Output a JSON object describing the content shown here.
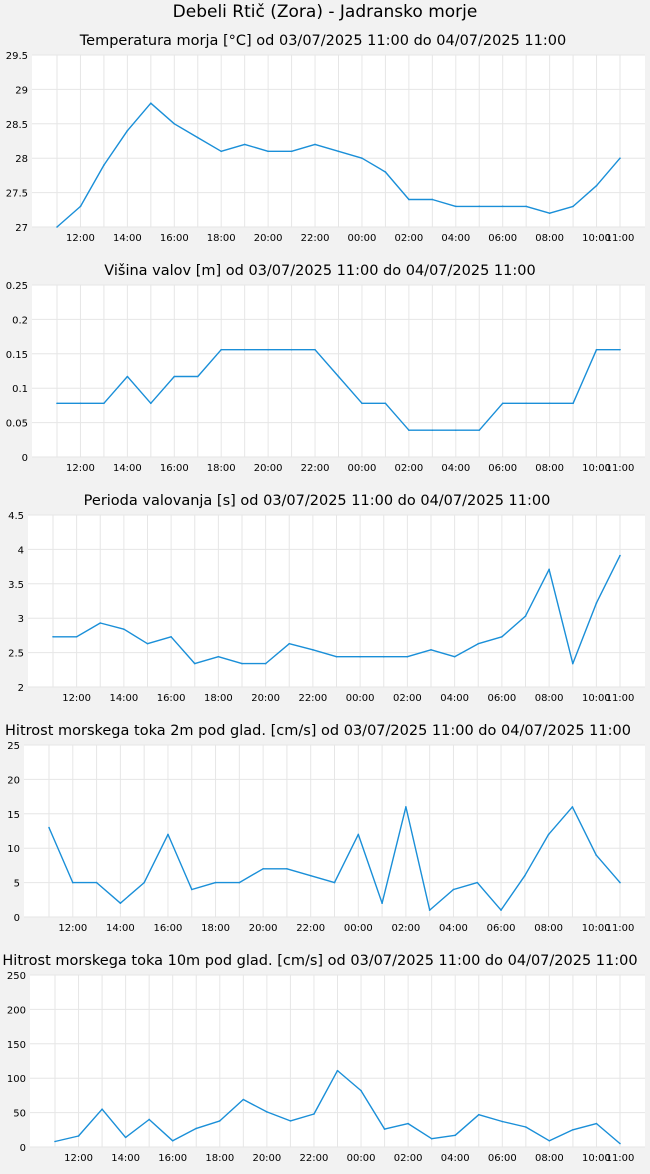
{
  "title": "Debeli Rtič (Zora) - Jadransko morje",
  "colors": {
    "series": "#1a8fd8",
    "background": "#f2f2f2",
    "plot": "#ffffff",
    "grid": "#e6e6e6"
  },
  "chart_data": [
    {
      "type": "line",
      "title": "Temperatura morja [°C] od 03/07/2025 11:00 do 04/07/2025 11:00",
      "ylim": [
        27,
        29.5
      ],
      "ytick_labels": [
        "27",
        "27.5",
        "28",
        "28.5",
        "29",
        "29.5"
      ],
      "xtick_labels": [
        "12:00",
        "14:00",
        "16:00",
        "18:00",
        "20:00",
        "22:00",
        "00:00",
        "02:00",
        "04:00",
        "06:00",
        "08:00",
        "10:00",
        "11:00"
      ],
      "x": [
        "11:00",
        "12:00",
        "13:00",
        "14:00",
        "15:00",
        "16:00",
        "17:00",
        "18:00",
        "19:00",
        "20:00",
        "21:00",
        "22:00",
        "23:00",
        "00:00",
        "01:00",
        "02:00",
        "03:00",
        "04:00",
        "05:00",
        "06:00",
        "07:00",
        "08:00",
        "09:00",
        "10:00",
        "11:00"
      ],
      "values": [
        27.0,
        27.3,
        27.9,
        28.4,
        28.8,
        28.5,
        28.3,
        28.1,
        28.2,
        28.1,
        28.1,
        28.2,
        28.1,
        28.0,
        27.8,
        27.4,
        27.4,
        27.3,
        27.3,
        27.3,
        27.3,
        27.2,
        27.3,
        27.6,
        28.0
      ],
      "grid": true
    },
    {
      "type": "line",
      "title": "Višina valov [m] od 03/07/2025 11:00 do 04/07/2025 11:00",
      "ylim": [
        0,
        0.25
      ],
      "ytick_labels": [
        "0",
        "0.05",
        "0.1",
        "0.15",
        "0.2",
        "0.25"
      ],
      "xtick_labels": [
        "12:00",
        "14:00",
        "16:00",
        "18:00",
        "20:00",
        "22:00",
        "00:00",
        "02:00",
        "04:00",
        "06:00",
        "08:00",
        "10:00",
        "11:00"
      ],
      "x": [
        "11:00",
        "12:00",
        "13:00",
        "14:00",
        "15:00",
        "16:00",
        "17:00",
        "18:00",
        "19:00",
        "20:00",
        "21:00",
        "22:00",
        "23:00",
        "00:00",
        "01:00",
        "02:00",
        "03:00",
        "04:00",
        "05:00",
        "06:00",
        "07:00",
        "08:00",
        "09:00",
        "10:00",
        "11:00"
      ],
      "values": [
        0.078,
        0.078,
        0.078,
        0.117,
        0.078,
        0.117,
        0.117,
        0.156,
        0.156,
        0.156,
        0.156,
        0.156,
        0.117,
        0.078,
        0.078,
        0.039,
        0.039,
        0.039,
        0.039,
        0.078,
        0.078,
        0.078,
        0.078,
        0.156,
        0.156
      ],
      "grid": true
    },
    {
      "type": "line",
      "title": "Perioda valovanja [s] od 03/07/2025 11:00 do 04/07/2025 11:00",
      "ylim": [
        2,
        4.5
      ],
      "ytick_labels": [
        "2",
        "2.5",
        "3",
        "3.5",
        "4",
        "4.5"
      ],
      "xtick_labels": [
        "12:00",
        "14:00",
        "16:00",
        "18:00",
        "20:00",
        "22:00",
        "00:00",
        "02:00",
        "04:00",
        "06:00",
        "08:00",
        "10:00",
        "11:00"
      ],
      "x": [
        "11:00",
        "12:00",
        "13:00",
        "14:00",
        "15:00",
        "16:00",
        "17:00",
        "18:00",
        "19:00",
        "20:00",
        "21:00",
        "22:00",
        "23:00",
        "00:00",
        "01:00",
        "02:00",
        "03:00",
        "04:00",
        "05:00",
        "06:00",
        "07:00",
        "08:00",
        "09:00",
        "10:00",
        "11:00"
      ],
      "values": [
        2.73,
        2.73,
        2.93,
        2.84,
        2.63,
        2.73,
        2.34,
        2.44,
        2.34,
        2.34,
        2.63,
        2.54,
        2.44,
        2.44,
        2.44,
        2.44,
        2.54,
        2.44,
        2.63,
        2.73,
        3.03,
        3.71,
        2.34,
        3.22,
        3.91
      ],
      "grid": true
    },
    {
      "type": "line",
      "title": "Hitrost morskega toka 2m pod glad. [cm/s] od 03/07/2025 11:00 do 04/07/2025 11:00",
      "ylim": [
        0,
        25
      ],
      "ytick_labels": [
        "0",
        "5",
        "10",
        "15",
        "20",
        "25"
      ],
      "xtick_labels": [
        "12:00",
        "14:00",
        "16:00",
        "18:00",
        "20:00",
        "22:00",
        "00:00",
        "02:00",
        "04:00",
        "06:00",
        "08:00",
        "10:00",
        "11:00"
      ],
      "x": [
        "11:00",
        "12:00",
        "13:00",
        "14:00",
        "15:00",
        "16:00",
        "17:00",
        "18:00",
        "19:00",
        "20:00",
        "21:00",
        "22:00",
        "23:00",
        "00:00",
        "01:00",
        "02:00",
        "03:00",
        "04:00",
        "05:00",
        "06:00",
        "07:00",
        "08:00",
        "09:00",
        "10:00",
        "11:00"
      ],
      "values": [
        13,
        5,
        5,
        2,
        5,
        12,
        4,
        5,
        5,
        7,
        7,
        6,
        5,
        12,
        2,
        16,
        1,
        4,
        5,
        1,
        6,
        12,
        16,
        9,
        5
      ],
      "grid": true
    },
    {
      "type": "line",
      "title": "Hitrost morskega toka 10m pod glad. [cm/s] od 03/07/2025 11:00 do 04/07/2025 11:00",
      "ylim": [
        0,
        250
      ],
      "ytick_labels": [
        "0",
        "50",
        "100",
        "150",
        "200",
        "250"
      ],
      "xtick_labels": [
        "12:00",
        "14:00",
        "16:00",
        "18:00",
        "20:00",
        "22:00",
        "00:00",
        "02:00",
        "04:00",
        "06:00",
        "08:00",
        "10:00",
        "11:00"
      ],
      "x": [
        "11:00",
        "12:00",
        "13:00",
        "14:00",
        "15:00",
        "16:00",
        "17:00",
        "18:00",
        "19:00",
        "20:00",
        "21:00",
        "22:00",
        "23:00",
        "00:00",
        "01:00",
        "02:00",
        "03:00",
        "04:00",
        "05:00",
        "06:00",
        "07:00",
        "08:00",
        "09:00",
        "10:00",
        "11:00"
      ],
      "values": [
        8,
        16,
        55,
        14,
        40,
        9,
        27,
        38,
        69,
        51,
        38,
        48,
        111,
        82,
        26,
        34,
        12,
        17,
        47,
        37,
        29,
        9,
        25,
        34,
        5
      ],
      "grid": true
    }
  ]
}
